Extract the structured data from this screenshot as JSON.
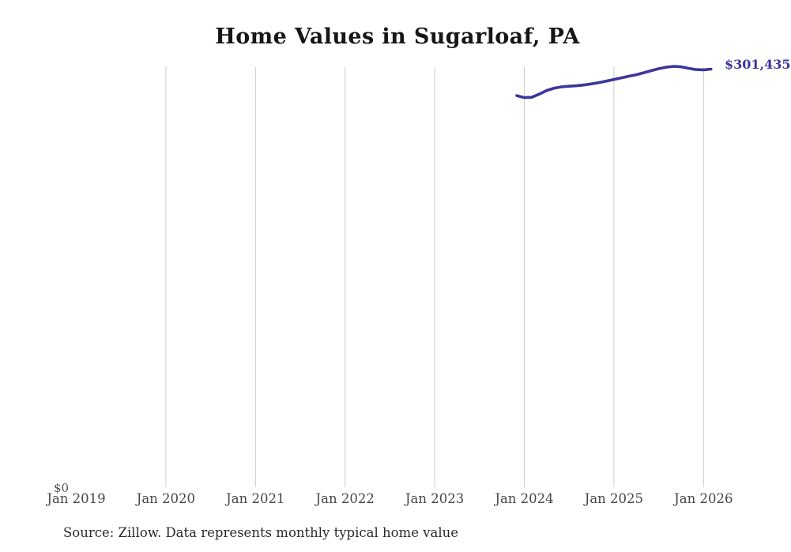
{
  "page": {
    "title": "Home Values in Sugarloaf, PA",
    "source_note": "Source: Zillow. Data represents monthly typical home value"
  },
  "colors": {
    "line": "#3b369b",
    "grid": "#cbcbcb",
    "title_text": "#161616",
    "axis_text": "#474747",
    "source_text": "#2b2b2b",
    "background": "#ffffff"
  },
  "chart_data": {
    "type": "line",
    "title": "Home Values in Sugarloaf, PA",
    "xlabel": "",
    "ylabel": "",
    "x_tick_labels": [
      "Jan 2019",
      "Jan 2020",
      "Jan 2021",
      "Jan 2022",
      "Jan 2023",
      "Jan 2024",
      "Jan 2025",
      "Jan 2026"
    ],
    "y_zero_label": "$0",
    "ylim": [
      0,
      302800
    ],
    "grid": "vertical year gridlines from Jan 2020 through Jan 2026; no gridline at Jan 2019; no horizontal gridlines",
    "legend": "none",
    "end_label": "$301,435",
    "series": [
      {
        "name": "Monthly typical home value",
        "months": [
          "Dec 2023",
          "Jan 2024",
          "Feb 2024",
          "Mar 2024",
          "Apr 2024",
          "May 2024",
          "Jun 2024",
          "Jul 2024",
          "Aug 2024",
          "Sep 2024",
          "Oct 2024",
          "Nov 2024",
          "Dec 2024",
          "Jan 2025",
          "Feb 2025",
          "Mar 2025",
          "Apr 2025",
          "May 2025",
          "Jun 2025",
          "Jul 2025",
          "Aug 2025",
          "Sep 2025",
          "Oct 2025",
          "Nov 2025",
          "Dec 2025",
          "Jan 2026",
          "Feb 2026"
        ],
        "values": [
          282300,
          280900,
          281100,
          283400,
          286000,
          287700,
          288600,
          289100,
          289400,
          290000,
          290800,
          291700,
          292800,
          294000,
          295100,
          296300,
          297400,
          298800,
          300300,
          301700,
          302800,
          303400,
          303100,
          302000,
          301100,
          300900,
          301435
        ]
      }
    ]
  }
}
